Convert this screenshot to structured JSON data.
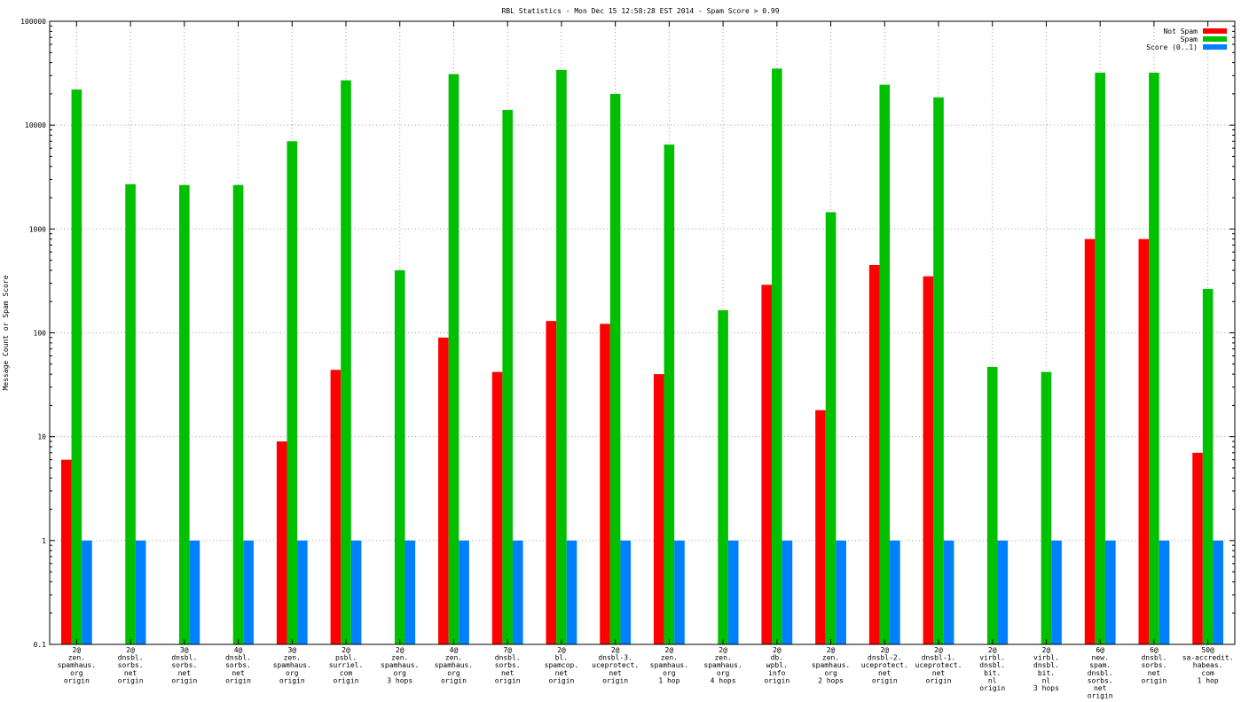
{
  "chart_data": {
    "type": "bar",
    "title": "RBL Statistics - Mon Dec 15 12:58:28 EST 2014 - Spam Score > 0.99",
    "ylabel": "Message Count or Spam Score",
    "xlabel": "",
    "yscale": "log",
    "ylim": [
      0.1,
      100000
    ],
    "yticks": [
      "0.1",
      "1",
      "10",
      "100",
      "1000",
      "10000",
      "100000"
    ],
    "grid": true,
    "legend_position": "top-right",
    "categories": [
      [
        "2@",
        "zen.",
        "spamhaus.",
        "org",
        "origin"
      ],
      [
        "2@",
        "dnsbl.",
        "sorbs.",
        "net",
        "origin"
      ],
      [
        "3@",
        "dnsbl.",
        "sorbs.",
        "net",
        "origin"
      ],
      [
        "4@",
        "dnsbl.",
        "sorbs.",
        "net",
        "origin"
      ],
      [
        "3@",
        "zen.",
        "spamhaus.",
        "org",
        "origin"
      ],
      [
        "2@",
        "psbl.",
        "surriel.",
        "com",
        "origin"
      ],
      [
        "2@",
        "zen.",
        "spamhaus.",
        "org",
        "3 hops"
      ],
      [
        "4@",
        "zen.",
        "spamhaus.",
        "org",
        "origin"
      ],
      [
        "7@",
        "dnsbl.",
        "sorbs.",
        "net",
        "origin"
      ],
      [
        "2@",
        "bl.",
        "spamcop.",
        "net",
        "origin"
      ],
      [
        "2@",
        "dnsbl-3.",
        "uceprotect.",
        "net",
        "origin"
      ],
      [
        "2@",
        "zen.",
        "spamhaus.",
        "org",
        "1 hop"
      ],
      [
        "2@",
        "zen.",
        "spamhaus.",
        "org",
        "4 hops"
      ],
      [
        "2@",
        "db.",
        "wpbl.",
        "info",
        "origin"
      ],
      [
        "2@",
        "zen.",
        "spamhaus.",
        "org",
        "2 hops"
      ],
      [
        "2@",
        "dnsbl-2.",
        "uceprotect.",
        "net",
        "origin"
      ],
      [
        "2@",
        "dnsbl-1.",
        "uceprotect.",
        "net",
        "origin"
      ],
      [
        "2@",
        "virbl.",
        "dnsbl.",
        "bit.",
        "nl",
        "origin"
      ],
      [
        "2@",
        "virbl.",
        "dnsbl.",
        "bit.",
        "nl",
        "3 hops"
      ],
      [
        "6@",
        "new.",
        "spam.",
        "dnsbl.",
        "sorbs.",
        "net",
        "origin"
      ],
      [
        "6@",
        "dnsbl.",
        "sorbs.",
        "net",
        "origin"
      ],
      [
        "50@",
        "sa-accredit.",
        "habeas.",
        "com",
        "1 hop"
      ]
    ],
    "series": [
      {
        "name": "Not Spam",
        "color": "#ff0000",
        "values": [
          6,
          null,
          null,
          null,
          9,
          44,
          null,
          90,
          42,
          130,
          122,
          40,
          null,
          290,
          18,
          450,
          350,
          null,
          null,
          800,
          800,
          7
        ]
      },
      {
        "name": "Spam",
        "color": "#00c000",
        "values": [
          22000,
          2700,
          2650,
          2650,
          7000,
          27000,
          400,
          31000,
          14000,
          34000,
          20000,
          6500,
          165,
          35000,
          1450,
          24500,
          18500,
          47,
          42,
          32000,
          32000,
          265
        ]
      },
      {
        "name": "Score (0..1)",
        "color": "#0080ff",
        "values": [
          1,
          1,
          1,
          1,
          1,
          1,
          1,
          1,
          1,
          1,
          1,
          1,
          1,
          1,
          1,
          1,
          1,
          1,
          1,
          1,
          1,
          1
        ]
      }
    ]
  }
}
